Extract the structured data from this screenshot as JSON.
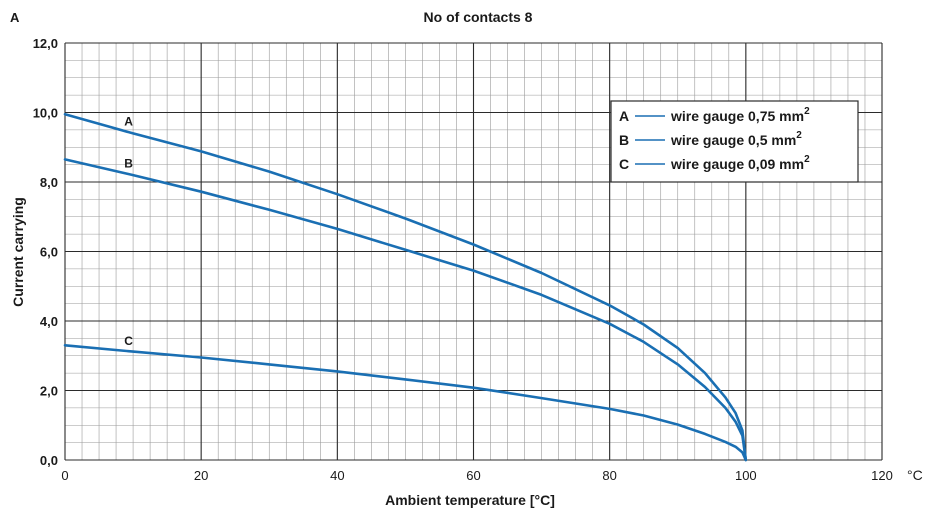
{
  "chart_data": {
    "type": "line",
    "title": "No of contacts 8",
    "y_unit": "A",
    "x_unit": "°C",
    "xlabel": "Ambient temperature [°C]",
    "ylabel": "Current carrying",
    "xlim": [
      0,
      120
    ],
    "ylim": [
      0,
      12
    ],
    "x_ticks": [
      "0",
      "20",
      "40",
      "60",
      "80",
      "100",
      "120"
    ],
    "y_ticks": [
      "0,0",
      "2,0",
      "4,0",
      "6,0",
      "8,0",
      "10,0",
      "12,0"
    ],
    "x_tick_values": [
      0,
      20,
      40,
      60,
      80,
      100,
      120
    ],
    "y_tick_values": [
      0,
      2,
      4,
      6,
      8,
      10,
      12
    ],
    "grid": true,
    "line_color": "#1a6fb3",
    "legend_position": "top-right",
    "series": [
      {
        "name": "A",
        "legend_text": "wire gauge 0,75 mm",
        "x": [
          0,
          10,
          20,
          30,
          40,
          50,
          60,
          70,
          80,
          85,
          90,
          94,
          97,
          98.5,
          99.5,
          100
        ],
        "y": [
          9.95,
          9.4,
          8.88,
          8.3,
          7.65,
          6.95,
          6.2,
          5.38,
          4.45,
          3.9,
          3.22,
          2.5,
          1.8,
          1.35,
          0.85,
          0
        ]
      },
      {
        "name": "B",
        "legend_text": "wire gauge 0,5 mm",
        "x": [
          0,
          10,
          20,
          30,
          40,
          50,
          60,
          70,
          80,
          85,
          90,
          94,
          97,
          98.5,
          99.5,
          100
        ],
        "y": [
          8.65,
          8.2,
          7.72,
          7.2,
          6.65,
          6.05,
          5.45,
          4.75,
          3.92,
          3.4,
          2.75,
          2.1,
          1.5,
          1.1,
          0.7,
          0
        ]
      },
      {
        "name": "C",
        "legend_text": "wire gauge 0,09 mm",
        "x": [
          0,
          10,
          20,
          30,
          40,
          50,
          60,
          70,
          80,
          85,
          90,
          94,
          97,
          98.5,
          99.5,
          100
        ],
        "y": [
          3.3,
          3.12,
          2.95,
          2.75,
          2.55,
          2.32,
          2.08,
          1.78,
          1.47,
          1.28,
          1.02,
          0.75,
          0.52,
          0.38,
          0.22,
          0
        ]
      }
    ],
    "legend_superscript": "2"
  }
}
